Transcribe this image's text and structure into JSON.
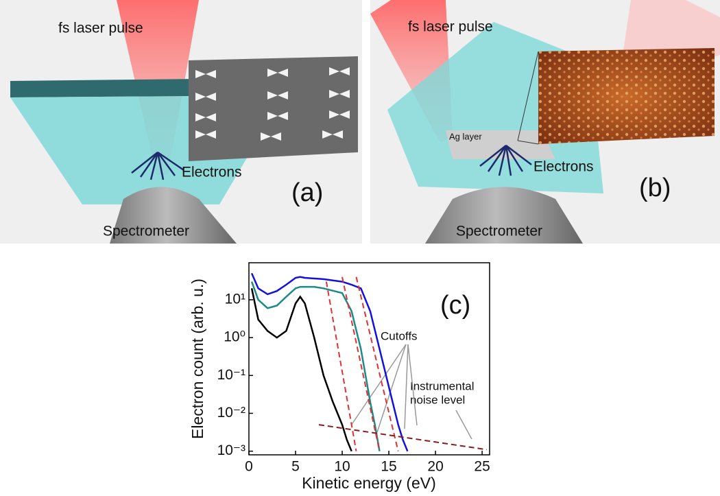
{
  "panel_a": {
    "laser": "fs laser pulse",
    "electrons": "Electrons",
    "spectrometer": "Spectrometer",
    "tag": "(a)"
  },
  "panel_b": {
    "laser": "fs laser pulse",
    "layer": "Ag layer",
    "electrons": "Electrons",
    "spectrometer": "Spectrometer",
    "tag": "(b)"
  },
  "chart_data": {
    "type": "line",
    "tag": "(c)",
    "x_label": "Kinetic energy (eV)",
    "y_label": "Electron count (arb. u.)",
    "log_y": true,
    "xlim": [
      0,
      25.8
    ],
    "ylim": [
      0.0008,
      95
    ],
    "xticks": [
      0,
      5,
      10,
      15,
      20,
      25
    ],
    "yticks": [
      {
        "value": 0.001,
        "label": "10⁻³"
      },
      {
        "value": 0.01,
        "label": "10⁻²"
      },
      {
        "value": 0.1,
        "label": "10⁻¹"
      },
      {
        "value": 1,
        "label": "10⁰"
      },
      {
        "value": 10,
        "label": "10¹"
      }
    ],
    "series": [
      {
        "color": "#000000",
        "x": [
          0.3,
          1,
          2,
          3,
          4,
          5,
          5.5,
          6,
          7,
          8,
          9,
          10,
          10.5,
          11
        ],
        "values": [
          20,
          3,
          1.5,
          1,
          1.5,
          8,
          12,
          8,
          1,
          0.1,
          0.02,
          0.005,
          0.002,
          0.001
        ]
      },
      {
        "color": "#1a8a8a",
        "x": [
          0.3,
          1,
          2,
          3,
          4,
          5,
          5.5,
          6,
          7,
          8,
          10,
          11,
          12,
          13,
          13.5,
          14
        ],
        "values": [
          30,
          10,
          6,
          7,
          12,
          20,
          22,
          22,
          22,
          20,
          15,
          5,
          0.5,
          0.02,
          0.005,
          0.001
        ]
      },
      {
        "color": "#1010e0",
        "x": [
          0.3,
          1,
          2,
          3,
          4,
          5,
          5.5,
          6,
          8,
          10,
          11,
          12,
          13,
          14,
          15,
          16,
          16.5,
          17
        ],
        "values": [
          50,
          20,
          14,
          17,
          25,
          38,
          40,
          38,
          35,
          30,
          25,
          20,
          5,
          0.5,
          0.05,
          0.005,
          0.002,
          0.001
        ]
      }
    ],
    "fits": [
      {
        "color": "#e03030",
        "x": [
          8.3,
          11.5
        ],
        "values": [
          30,
          0.001
        ]
      },
      {
        "color": "#e03030",
        "x": [
          10,
          14
        ],
        "values": [
          40,
          0.001
        ]
      },
      {
        "color": "#e03030",
        "x": [
          11.5,
          16
        ],
        "values": [
          40,
          0.001
        ]
      },
      {
        "color": "#8b1a1a",
        "x": [
          7.5,
          25.5
        ],
        "values": [
          0.005,
          0.0011
        ]
      }
    ],
    "annotations": [
      "Cutoffs",
      "Instrumental",
      "noise level"
    ]
  }
}
